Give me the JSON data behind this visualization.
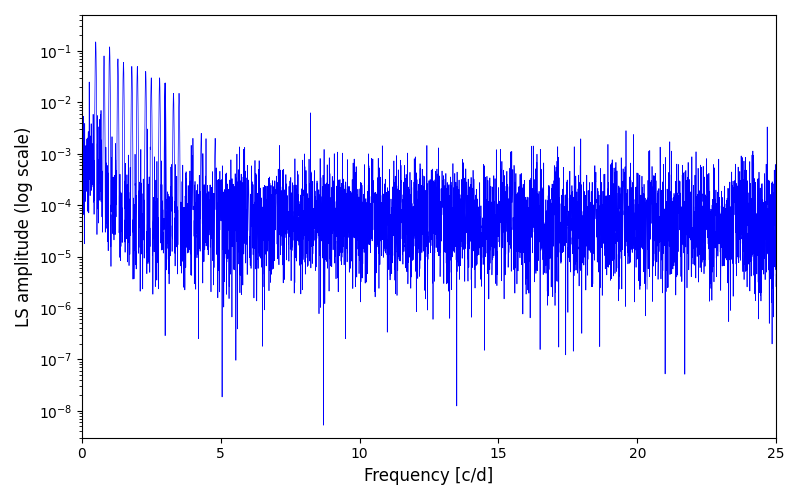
{
  "title": "",
  "xlabel": "Frequency [c/d]",
  "ylabel": "LS amplitude (log scale)",
  "xlim": [
    0,
    25
  ],
  "ylim": [
    3e-09,
    0.5
  ],
  "line_color": "#0000FF",
  "line_width": 0.5,
  "figsize": [
    8.0,
    5.0
  ],
  "dpi": 100,
  "freq_min": 0.001,
  "freq_max": 25.0,
  "n_points": 6000,
  "seed": 77,
  "background_color": "#ffffff",
  "xticks": [
    0,
    5,
    10,
    15,
    20,
    25
  ]
}
